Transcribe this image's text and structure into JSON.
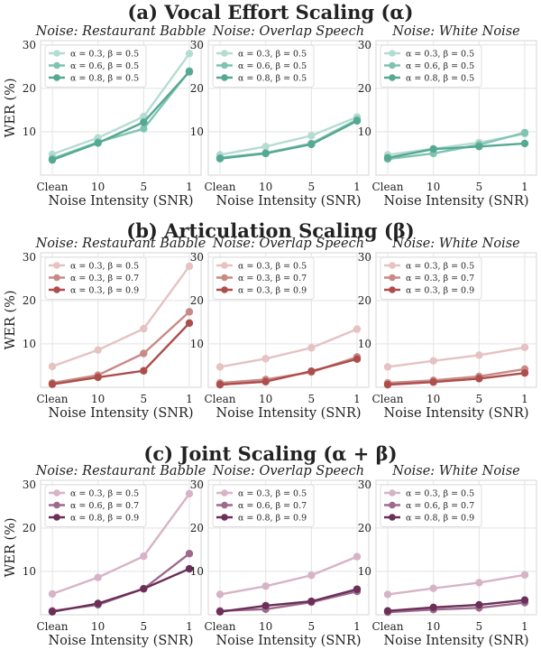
{
  "chart_data": [
    {
      "type": "line",
      "row_title": "(a) Vocal Effort Scaling (α)",
      "title": "Noise: Restaurant Babble",
      "xlabel": "Noise Intensity (SNR)",
      "ylabel": "WER (%)",
      "categories": [
        "Clean",
        "10",
        "5",
        "1"
      ],
      "ylim": [
        0,
        31
      ],
      "yticks": [
        10,
        20,
        30
      ],
      "grid": true,
      "legend_position": "top-left",
      "series": [
        {
          "name": "α = 0.3, β = 0.5",
          "color": "#b5dcd2",
          "values": [
            4.8,
            8.6,
            13.5,
            28.0
          ]
        },
        {
          "name": "α = 0.6, β = 0.5",
          "color": "#7fc4b1",
          "values": [
            3.8,
            7.6,
            10.7,
            24.0
          ]
        },
        {
          "name": "α = 0.8, β = 0.5",
          "color": "#55a892",
          "values": [
            3.5,
            7.4,
            12.2,
            23.8
          ]
        }
      ]
    },
    {
      "type": "line",
      "title": "Noise: Overlap Speech",
      "xlabel": "Noise Intensity (SNR)",
      "categories": [
        "Clean",
        "10",
        "5",
        "1"
      ],
      "ylim": [
        0,
        31
      ],
      "yticks": [
        10,
        20,
        30
      ],
      "grid": true,
      "legend_position": "top-left",
      "series": [
        {
          "name": "α = 0.3, β = 0.5",
          "color": "#b5dcd2",
          "values": [
            4.7,
            6.6,
            9.1,
            13.4
          ]
        },
        {
          "name": "α = 0.6, β = 0.5",
          "color": "#7fc4b1",
          "values": [
            4.0,
            5.1,
            7.3,
            12.8
          ]
        },
        {
          "name": "α = 0.8, β = 0.5",
          "color": "#55a892",
          "values": [
            3.8,
            5.0,
            7.1,
            12.5
          ]
        }
      ]
    },
    {
      "type": "line",
      "title": "Noise: White Noise",
      "xlabel": "Noise Intensity (SNR)",
      "categories": [
        "Clean",
        "10",
        "5",
        "1"
      ],
      "ylim": [
        0,
        31
      ],
      "yticks": [
        10,
        20,
        30
      ],
      "grid": true,
      "legend_position": "top-left",
      "series": [
        {
          "name": "α = 0.3, β = 0.5",
          "color": "#b5dcd2",
          "values": [
            4.7,
            6.1,
            7.5,
            9.5
          ]
        },
        {
          "name": "α = 0.6, β = 0.5",
          "color": "#7fc4b1",
          "values": [
            3.7,
            5.0,
            7.0,
            9.8
          ]
        },
        {
          "name": "α = 0.8, β = 0.5",
          "color": "#55a892",
          "values": [
            4.0,
            6.0,
            6.6,
            7.3
          ]
        }
      ]
    },
    {
      "type": "line",
      "row_title": "(b) Articulation Scaling (β)",
      "title": "Noise: Restaurant Babble",
      "xlabel": "Noise Intensity (SNR)",
      "ylabel": "WER (%)",
      "categories": [
        "Clean",
        "10",
        "5",
        "1"
      ],
      "ylim": [
        0,
        31
      ],
      "yticks": [
        10,
        20,
        30
      ],
      "grid": true,
      "legend_position": "top-left",
      "series": [
        {
          "name": "α = 0.3, β = 0.5",
          "color": "#e6c2c2",
          "values": [
            4.8,
            8.6,
            13.5,
            27.9
          ]
        },
        {
          "name": "α = 0.3, β = 0.7",
          "color": "#c98a86",
          "values": [
            1.0,
            2.8,
            7.8,
            17.4
          ]
        },
        {
          "name": "α = 0.3, β = 0.9",
          "color": "#ad4e4c",
          "values": [
            0.7,
            2.3,
            3.8,
            14.8
          ]
        }
      ]
    },
    {
      "type": "line",
      "title": "Noise: Overlap Speech",
      "xlabel": "Noise Intensity (SNR)",
      "categories": [
        "Clean",
        "10",
        "5",
        "1"
      ],
      "ylim": [
        0,
        31
      ],
      "yticks": [
        10,
        20,
        30
      ],
      "grid": true,
      "legend_position": "top-left",
      "series": [
        {
          "name": "α = 0.3, β = 0.5",
          "color": "#e6c2c2",
          "values": [
            4.7,
            6.6,
            9.1,
            13.4
          ]
        },
        {
          "name": "α = 0.3, β = 0.7",
          "color": "#c98a86",
          "values": [
            1.0,
            1.8,
            3.5,
            7.0
          ]
        },
        {
          "name": "α = 0.3, β = 0.9",
          "color": "#ad4e4c",
          "values": [
            0.6,
            1.3,
            3.7,
            6.5
          ]
        }
      ]
    },
    {
      "type": "line",
      "title": "Noise: White Noise",
      "xlabel": "Noise Intensity (SNR)",
      "categories": [
        "Clean",
        "10",
        "5",
        "1"
      ],
      "ylim": [
        0,
        31
      ],
      "yticks": [
        10,
        20,
        30
      ],
      "grid": true,
      "legend_position": "top-left",
      "series": [
        {
          "name": "α = 0.3, β = 0.5",
          "color": "#e6c2c2",
          "values": [
            4.7,
            6.1,
            7.4,
            9.2
          ]
        },
        {
          "name": "α = 0.3, β = 0.7",
          "color": "#c98a86",
          "values": [
            1.0,
            1.6,
            2.5,
            4.2
          ]
        },
        {
          "name": "α = 0.3, β = 0.9",
          "color": "#ad4e4c",
          "values": [
            0.6,
            1.2,
            2.0,
            3.3
          ]
        }
      ]
    },
    {
      "type": "line",
      "row_title": "(c) Joint Scaling (α + β)",
      "title": "Noise: Restaurant Babble",
      "xlabel": "Noise Intensity (SNR)",
      "ylabel": "WER (%)",
      "categories": [
        "Clean",
        "10",
        "5",
        "1"
      ],
      "ylim": [
        0,
        31
      ],
      "yticks": [
        10,
        20,
        30
      ],
      "grid": true,
      "legend_position": "top-left",
      "series": [
        {
          "name": "α = 0.3, β = 0.5",
          "color": "#d6b4c6",
          "values": [
            4.8,
            8.6,
            13.5,
            27.9
          ]
        },
        {
          "name": "α = 0.6, β = 0.7",
          "color": "#9d6a8d",
          "values": [
            0.9,
            2.3,
            6.0,
            14.1
          ]
        },
        {
          "name": "α = 0.8, β = 0.9",
          "color": "#6b2f58",
          "values": [
            0.7,
            2.6,
            6.0,
            10.6
          ]
        }
      ]
    },
    {
      "type": "line",
      "title": "Noise: Overlap Speech",
      "xlabel": "Noise Intensity (SNR)",
      "categories": [
        "Clean",
        "10",
        "5",
        "1"
      ],
      "ylim": [
        0,
        31
      ],
      "yticks": [
        10,
        20,
        30
      ],
      "grid": true,
      "legend_position": "top-left",
      "series": [
        {
          "name": "α = 0.3, β = 0.5",
          "color": "#d6b4c6",
          "values": [
            4.7,
            6.6,
            9.1,
            13.4
          ]
        },
        {
          "name": "α = 0.6, β = 0.7",
          "color": "#9d6a8d",
          "values": [
            0.9,
            1.3,
            2.9,
            5.4
          ]
        },
        {
          "name": "α = 0.8, β = 0.9",
          "color": "#6b2f58",
          "values": [
            0.7,
            2.1,
            3.1,
            5.9
          ]
        }
      ]
    },
    {
      "type": "line",
      "title": "Noise: White Noise",
      "xlabel": "Noise Intensity (SNR)",
      "categories": [
        "Clean",
        "10",
        "5",
        "1"
      ],
      "ylim": [
        0,
        31
      ],
      "yticks": [
        10,
        20,
        30
      ],
      "grid": true,
      "legend_position": "top-left",
      "series": [
        {
          "name": "α = 0.3, β = 0.5",
          "color": "#d6b4c6",
          "values": [
            4.7,
            6.1,
            7.4,
            9.2
          ]
        },
        {
          "name": "α = 0.6, β = 0.7",
          "color": "#9d6a8d",
          "values": [
            0.6,
            1.2,
            1.6,
            2.8
          ]
        },
        {
          "name": "α = 0.8, β = 0.9",
          "color": "#6b2f58",
          "values": [
            0.9,
            1.7,
            2.3,
            3.4
          ]
        }
      ]
    }
  ]
}
